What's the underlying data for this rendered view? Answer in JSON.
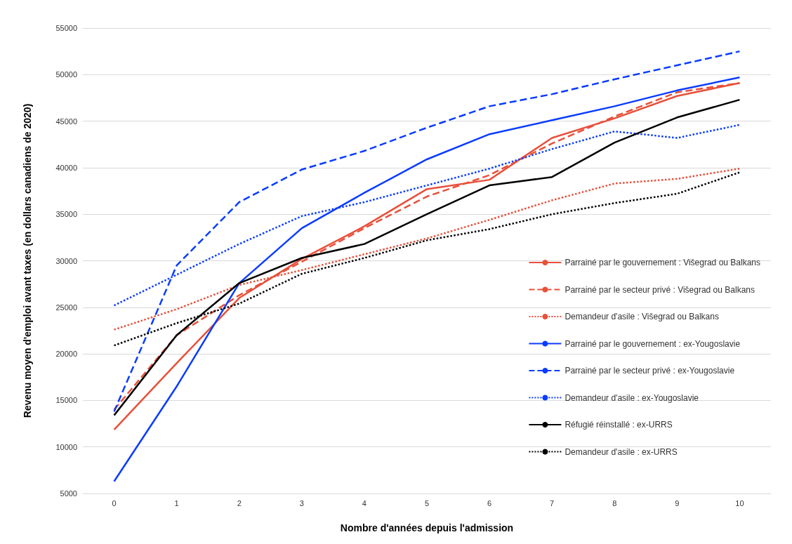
{
  "chart_data": {
    "type": "line",
    "xlabel": "Nombre d'années depuis l'admission",
    "ylabel": "Revenu moyen d'emploi avant taxes (en dollars canadiens de 2020)",
    "categories": [
      "0",
      "1",
      "2",
      "3",
      "4",
      "5",
      "6",
      "7",
      "8",
      "9",
      "10"
    ],
    "ylim": [
      5000,
      55000
    ],
    "yticks": [
      5000,
      10000,
      15000,
      20000,
      25000,
      30000,
      35000,
      40000,
      45000,
      50000,
      55000
    ],
    "grid": "y",
    "legend": "right",
    "marker": "none",
    "series": [
      {
        "name": "Parrainé par le gouvernement : Višegrad ou Balkans",
        "color": "#e8503a",
        "line_style": "solid",
        "values": [
          11850,
          19000,
          26000,
          30200,
          33700,
          37700,
          38700,
          43200,
          45300,
          47700,
          49100
        ]
      },
      {
        "name": "Parrainé par le secteur privé : Višegrad ou Balkans",
        "color": "#e8503a",
        "line_style": "dashed",
        "values": [
          14000,
          22000,
          26300,
          29900,
          33500,
          36900,
          39200,
          42600,
          45500,
          48100,
          49100
        ]
      },
      {
        "name": "Demandeur d'asile : Višegrad ou Balkans",
        "color": "#e8503a",
        "line_style": "dotted",
        "values": [
          22600,
          24800,
          27400,
          29000,
          30700,
          32400,
          34400,
          36500,
          38300,
          38800,
          39900
        ]
      },
      {
        "name": "Parrainé par le gouvernement : ex-Yougoslavie",
        "color": "#0a3cff",
        "line_style": "solid",
        "values": [
          6300,
          16500,
          27600,
          33500,
          37300,
          40900,
          43600,
          45100,
          46600,
          48300,
          49700
        ]
      },
      {
        "name": "Parrainé par le secteur privé : ex-Yougoslavie",
        "color": "#0a3cff",
        "line_style": "dashed",
        "values": [
          13800,
          29500,
          36300,
          39800,
          41800,
          44300,
          46600,
          47900,
          49500,
          51000,
          52500
        ]
      },
      {
        "name": "Demandeur d'asile : ex-Yougoslavie",
        "color": "#0a3cff",
        "line_style": "dotted",
        "values": [
          25200,
          28500,
          31800,
          34800,
          36300,
          38100,
          39900,
          42000,
          43900,
          43200,
          44600
        ]
      },
      {
        "name": "Réfugié réinstallé : ex-URRS",
        "color": "#000000",
        "line_style": "solid",
        "values": [
          13400,
          22000,
          27600,
          30300,
          31800,
          35000,
          38100,
          39000,
          42700,
          45400,
          47300
        ]
      },
      {
        "name": "Demandeur d'asile : ex-URRS",
        "color": "#000000",
        "line_style": "dotted",
        "values": [
          20900,
          23300,
          25400,
          28600,
          30300,
          32200,
          33400,
          35000,
          36200,
          37200,
          39500
        ]
      }
    ]
  }
}
